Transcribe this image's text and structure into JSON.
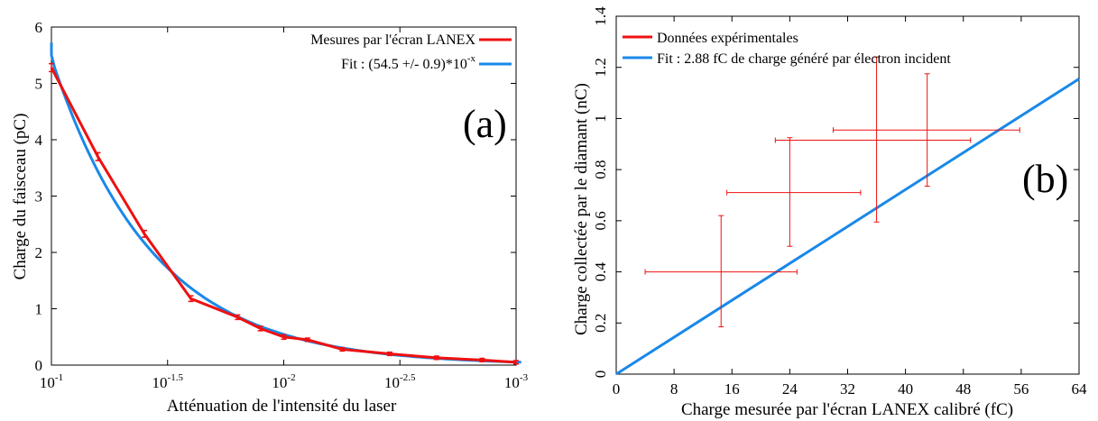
{
  "chart_data": [
    {
      "panel": "a",
      "type": "line",
      "panel_label": "(a)",
      "xlabel": "Atténuation de l'intensité du laser",
      "ylabel": "Charge du faisceau (pC)",
      "x_scale": "log",
      "x_decreasing": true,
      "xlim": [
        0.1,
        0.001
      ],
      "ylim": [
        0,
        6
      ],
      "x_ticks": [
        {
          "base": "10",
          "exp": "-1",
          "value": 0.1
        },
        {
          "base": "10",
          "exp": "-1.5",
          "value": 0.031623
        },
        {
          "base": "10",
          "exp": "-2",
          "value": 0.01
        },
        {
          "base": "10",
          "exp": "-2.5",
          "value": 0.0031623
        },
        {
          "base": "10",
          "exp": "-3",
          "value": 0.001
        }
      ],
      "y_ticks": [
        "0",
        "1",
        "2",
        "3",
        "4",
        "5",
        "6"
      ],
      "legend_position": "top-right",
      "series": [
        {
          "name": "Mesures par l'écran LANEX",
          "kind": "measured",
          "color": "#ee1111",
          "points": [
            {
              "x": 0.1,
              "y": 5.28,
              "err": 0.07
            },
            {
              "x": 0.0631,
              "y": 3.7,
              "err": 0.07
            },
            {
              "x": 0.0398,
              "y": 2.33,
              "err": 0.06
            },
            {
              "x": 0.0251,
              "y": 1.18,
              "err": 0.05
            },
            {
              "x": 0.0158,
              "y": 0.85,
              "err": 0.04
            },
            {
              "x": 0.0126,
              "y": 0.65,
              "err": 0.04
            },
            {
              "x": 0.01,
              "y": 0.5,
              "err": 0.04
            },
            {
              "x": 0.0079,
              "y": 0.45,
              "err": 0.03
            },
            {
              "x": 0.0056,
              "y": 0.28,
              "err": 0.03
            },
            {
              "x": 0.0035,
              "y": 0.2,
              "err": 0.03
            },
            {
              "x": 0.0022,
              "y": 0.13,
              "err": 0.03
            },
            {
              "x": 0.0014,
              "y": 0.09,
              "err": 0.03
            },
            {
              "x": 0.001,
              "y": 0.05,
              "err": 0.03
            }
          ]
        },
        {
          "name": "Fit : (54.5 +/- 0.9)*10",
          "name_sup": "-x",
          "kind": "fit",
          "color": "#1a88e8",
          "coefficient": 54.5
        }
      ]
    },
    {
      "panel": "b",
      "type": "scatter",
      "panel_label": "(b)",
      "xlabel": "Charge mesurée par l'écran LANEX calibré (fC)",
      "ylabel": "Charge collectée par le diamant (nC)",
      "xlim": [
        0,
        64
      ],
      "ylim": [
        0,
        1.4
      ],
      "x_ticks": [
        "0",
        "8",
        "16",
        "24",
        "32",
        "40",
        "48",
        "56",
        "64"
      ],
      "y_ticks": [
        "0",
        "0.2",
        "0.4",
        "0.6",
        "0.8",
        "1",
        "1.2",
        "1.4"
      ],
      "legend_position": "top-left",
      "series": [
        {
          "name": "Données expérimentales",
          "kind": "measured",
          "color": "#ee1111",
          "points": [
            {
              "x": 14.5,
              "y": 0.4,
              "xerr": [
                4.0,
                25.0
              ],
              "yerr": [
                0.185,
                0.62
              ]
            },
            {
              "x": 24.0,
              "y": 0.71,
              "xerr": [
                15.3,
                33.8
              ],
              "yerr": [
                0.5,
                0.925
              ]
            },
            {
              "x": 36.0,
              "y": 0.915,
              "xerr": [
                22.0,
                49.0
              ],
              "yerr": [
                0.595,
                1.24
              ]
            },
            {
              "x": 43.0,
              "y": 0.955,
              "xerr": [
                30.0,
                55.8
              ],
              "yerr": [
                0.735,
                1.175
              ]
            }
          ]
        },
        {
          "name": "Fit : 2.88 fC de charge généré par électron incident",
          "kind": "fit",
          "color": "#1a88e8",
          "line": [
            {
              "x": 0,
              "y": 0
            },
            {
              "x": 64,
              "y": 1.155
            }
          ]
        }
      ]
    }
  ]
}
